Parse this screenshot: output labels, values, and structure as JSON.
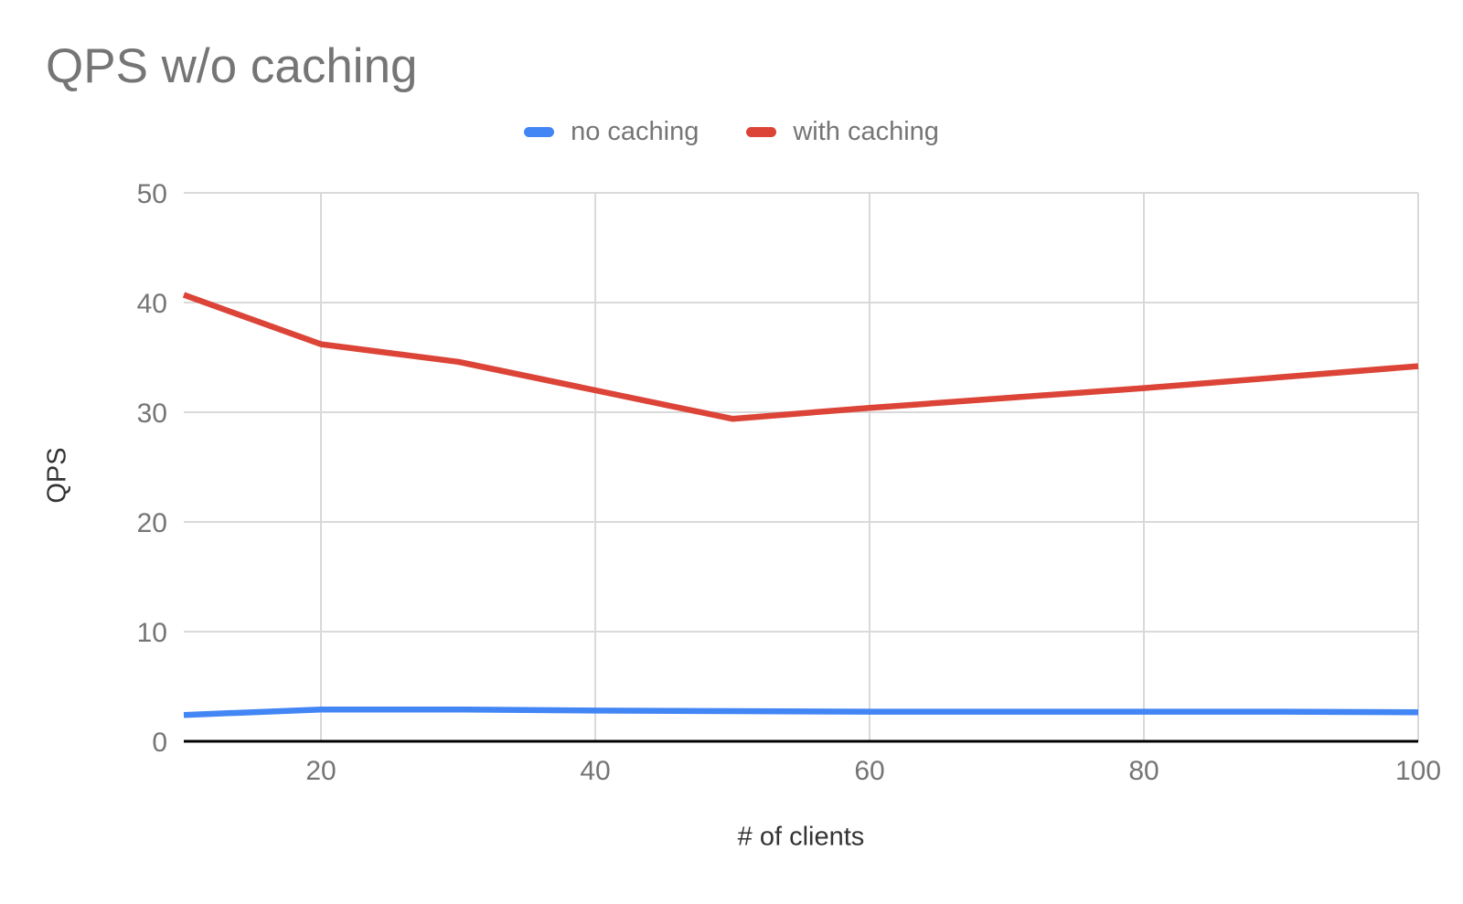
{
  "chart_data": {
    "type": "line",
    "title": "QPS w/o caching",
    "xlabel": "# of clients",
    "ylabel": "QPS",
    "x": [
      10,
      20,
      30,
      40,
      50,
      60,
      70,
      80,
      90,
      100
    ],
    "series": [
      {
        "name": "no caching",
        "color": "#4285f4",
        "values": [
          2.4,
          2.9,
          2.9,
          2.8,
          2.75,
          2.7,
          2.7,
          2.7,
          2.7,
          2.65
        ]
      },
      {
        "name": "with caching",
        "color": "#db4437",
        "values": [
          40.7,
          36.2,
          34.6,
          32,
          29.4,
          30.4,
          31.3,
          32.2,
          33.2,
          34.2
        ]
      }
    ],
    "xlim": [
      10,
      100
    ],
    "ylim": [
      0,
      50
    ],
    "x_ticks": [
      20,
      40,
      60,
      80,
      100
    ],
    "y_ticks": [
      0,
      10,
      20,
      30,
      40,
      50
    ],
    "grid": true,
    "legend_position": "top",
    "colors": {
      "title": "#757575",
      "legend_text": "#757575",
      "tick_label": "#757575",
      "axis_title": "#333333",
      "gridline": "#d9d9d9",
      "axis_line": "#000000",
      "background": "#ffffff"
    }
  }
}
